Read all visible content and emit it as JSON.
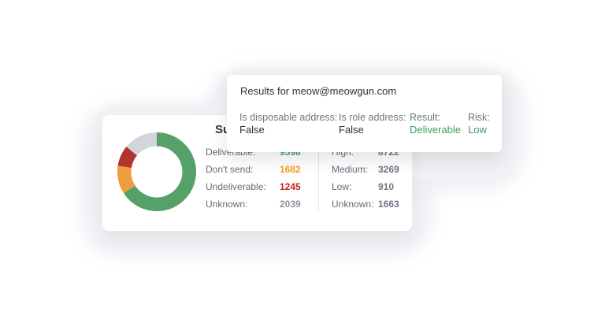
{
  "page": {
    "background": "#ffffff"
  },
  "results_card": {
    "title": "Results for meow@meowgun.com",
    "fields": [
      {
        "label": "Is disposable address:",
        "value": "False",
        "value_color": "#2c313a"
      },
      {
        "label": "Is role address:",
        "value": "False",
        "value_color": "#2c313a"
      },
      {
        "label": "Result:",
        "value": "Deliverable",
        "value_color": "#38a060"
      },
      {
        "label": "Risk:",
        "value": "Low",
        "value_color": "#38a060"
      }
    ]
  },
  "summary_card": {
    "title": "Summary",
    "left_column": {
      "rows": [
        {
          "label": "Deliverable:",
          "value": "9598",
          "value_color": "#3fa05c"
        },
        {
          "label": "Don't send:",
          "value": "1682",
          "value_color": "#f59c23"
        },
        {
          "label": "Undeliverable:",
          "value": "1245",
          "value_color": "#c92119"
        },
        {
          "label": "Unknown:",
          "value": "2039",
          "value_color": "#8d95a3"
        }
      ]
    },
    "right_column": {
      "rows": [
        {
          "label": "High:",
          "value": "8722",
          "value_color": "#6e7785"
        },
        {
          "label": "Medium:",
          "value": "3269",
          "value_color": "#6e7785"
        },
        {
          "label": "Low:",
          "value": "910",
          "value_color": "#6e7785"
        },
        {
          "label": "Unknown:",
          "value": "1663",
          "value_color": "#6e7785"
        }
      ]
    }
  },
  "chart_data": {
    "type": "pie",
    "donut": true,
    "title": "Summary",
    "legend_position": "none",
    "start_angle_deg": 0,
    "direction": "clockwise",
    "segments": [
      {
        "name": "deliverable",
        "label": "Deliverable",
        "value": 9598,
        "color": "#56a169"
      },
      {
        "name": "dont-send",
        "label": "Don't send",
        "value": 1682,
        "color": "#ee9d3f"
      },
      {
        "name": "undeliverable",
        "label": "Undeliverable",
        "value": 1245,
        "color": "#b23331"
      },
      {
        "name": "unknown",
        "label": "Unknown",
        "value": 2039,
        "color": "#d2d6dc"
      }
    ]
  }
}
